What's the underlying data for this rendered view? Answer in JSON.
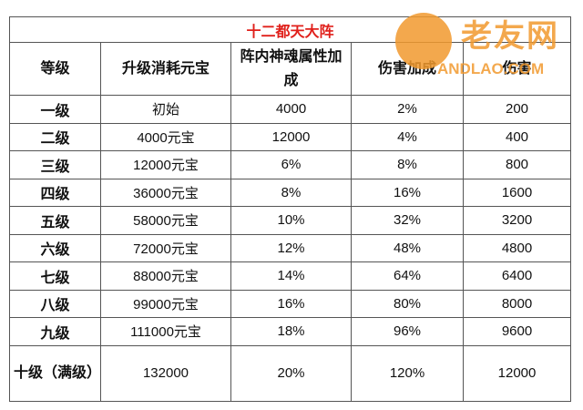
{
  "table": {
    "title": "十二都天大阵",
    "header": [
      "等级",
      "升级消耗元宝",
      "阵内神魂属性加成",
      "伤害加成",
      "伤害"
    ],
    "rows": [
      [
        "一级",
        "初始",
        "4000",
        "2%",
        "200"
      ],
      [
        "二级",
        "4000元宝",
        "12000",
        "4%",
        "400"
      ],
      [
        "三级",
        "12000元宝",
        "6%",
        "8%",
        "800"
      ],
      [
        "四级",
        "36000元宝",
        "8%",
        "16%",
        "1600"
      ],
      [
        "五级",
        "58000元宝",
        "10%",
        "32%",
        "3200"
      ],
      [
        "六级",
        "72000元宝",
        "12%",
        "48%",
        "4800"
      ],
      [
        "七级",
        "88000元宝",
        "14%",
        "64%",
        "6400"
      ],
      [
        "八级",
        "99000元宝",
        "16%",
        "80%",
        "8000"
      ],
      [
        "九级",
        "111000元宝",
        "18%",
        "96%",
        "9600"
      ],
      [
        "十级（满级）",
        "132000",
        "20%",
        "120%",
        "12000"
      ]
    ]
  },
  "watermark": {
    "logo": "老友网",
    "site": "ANDLAO.COM"
  }
}
